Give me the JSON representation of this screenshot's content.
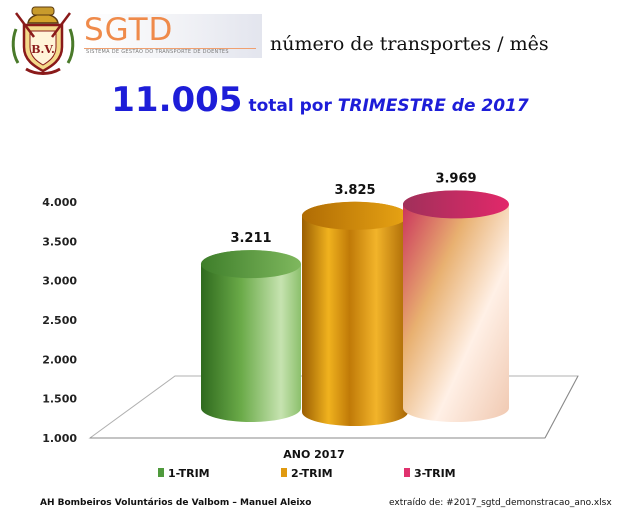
{
  "header": {
    "logo_text": "SGTD",
    "logo_subtitle": "SISTEMA DE GESTÃO DO TRANSPORTE DE DOENTES",
    "crest_text": "B.V.",
    "heading": "número de transportes / mês"
  },
  "summary": {
    "total_value": "11.005",
    "total_text_prefix": "total por ",
    "total_text_emph": "TRIMESTRE de 2017"
  },
  "footer": {
    "left": "AH Bombeiros Voluntários de Valbom – Manuel Aleixo",
    "right": "extraído de: #2017_sgtd_demonstracao_ano.xlsx"
  },
  "colors": {
    "title_blue": "#1d1dd8",
    "logo_orange": "#ef8a4a",
    "series_1": "#4f9a3c",
    "series_2": "#e09a10",
    "series_3": "#e0326e"
  },
  "chart_data": {
    "type": "bar",
    "style": "3d-cylinder",
    "categories": [
      "ANO 2017"
    ],
    "series": [
      {
        "name": "1-TRIM",
        "values": [
          3211
        ],
        "label": "3.211"
      },
      {
        "name": "2-TRIM",
        "values": [
          3825
        ],
        "label": "3.825"
      },
      {
        "name": "3-TRIM",
        "values": [
          3969
        ],
        "label": "3.969"
      }
    ],
    "ylim": [
      1000,
      4000
    ],
    "yticks": [
      1000,
      1500,
      2000,
      2500,
      3000,
      3500,
      4000
    ],
    "ytick_labels": [
      "1.000",
      "1.500",
      "2.000",
      "2.500",
      "3.000",
      "3.500",
      "4.000"
    ],
    "xlabel": "",
    "ylabel": "",
    "grid": false,
    "legend": "bottom"
  }
}
